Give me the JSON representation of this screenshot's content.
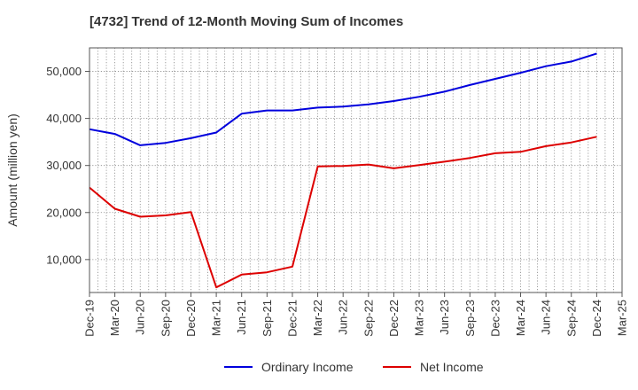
{
  "chart_data": {
    "type": "line",
    "title": "[4732]  Trend of 12-Month Moving Sum of Incomes",
    "xlabel": "",
    "ylabel": "Amount (million yen)",
    "ylim": [
      3000,
      55000
    ],
    "yticks": [
      10000,
      20000,
      30000,
      40000,
      50000
    ],
    "ytick_labels": [
      "10,000",
      "20,000",
      "30,000",
      "40,000",
      "50,000"
    ],
    "grid": true,
    "legend_position": "bottom",
    "tick_labels": [
      "Dec-19",
      "Mar-20",
      "Jun-20",
      "Sep-20",
      "Dec-20",
      "Mar-21",
      "Jun-21",
      "Sep-21",
      "Dec-21",
      "Mar-22",
      "Jun-22",
      "Sep-22",
      "Dec-22",
      "Mar-23",
      "Jun-23",
      "Sep-23",
      "Dec-23",
      "Mar-24",
      "Jun-24",
      "Sep-24",
      "Dec-24",
      "Mar-25"
    ],
    "categories": [
      "Dec-19",
      "Jan-20",
      "Feb-20",
      "Mar-20",
      "Apr-20",
      "May-20",
      "Jun-20",
      "Jul-20",
      "Aug-20",
      "Sep-20",
      "Oct-20",
      "Nov-20",
      "Dec-20",
      "Jan-21",
      "Feb-21",
      "Mar-21",
      "Apr-21",
      "May-21",
      "Jun-21",
      "Jul-21",
      "Aug-21",
      "Sep-21",
      "Oct-21",
      "Nov-21",
      "Dec-21",
      "Jan-22",
      "Feb-22",
      "Mar-22",
      "Apr-22",
      "May-22",
      "Jun-22",
      "Jul-22",
      "Aug-22",
      "Sep-22",
      "Oct-22",
      "Nov-22",
      "Dec-22",
      "Jan-23",
      "Feb-23",
      "Mar-23",
      "Apr-23",
      "May-23",
      "Jun-23",
      "Jul-23",
      "Aug-23",
      "Sep-23",
      "Oct-23",
      "Nov-23",
      "Dec-23",
      "Jan-24",
      "Feb-24",
      "Mar-24",
      "Apr-24",
      "May-24",
      "Jun-24",
      "Jul-24",
      "Aug-24",
      "Sep-24",
      "Oct-24",
      "Nov-24",
      "Dec-24",
      "Jan-25",
      "Feb-25",
      "Mar-25"
    ],
    "series": [
      {
        "name": "Ordinary Income",
        "color": "#0000dd",
        "points": [
          [
            "Dec-19",
            37700
          ],
          [
            "Mar-20",
            36700
          ],
          [
            "Jun-20",
            34300
          ],
          [
            "Sep-20",
            34800
          ],
          [
            "Dec-20",
            35800
          ],
          [
            "Mar-21",
            37000
          ],
          [
            "Jun-21",
            41000
          ],
          [
            "Sep-21",
            41700
          ],
          [
            "Dec-21",
            41700
          ],
          [
            "Mar-22",
            42300
          ],
          [
            "Jun-22",
            42500
          ],
          [
            "Sep-22",
            43000
          ],
          [
            "Dec-22",
            43700
          ],
          [
            "Mar-23",
            44600
          ],
          [
            "Jun-23",
            45700
          ],
          [
            "Sep-23",
            47100
          ],
          [
            "Dec-23",
            48400
          ],
          [
            "Mar-24",
            49700
          ],
          [
            "Jun-24",
            51100
          ],
          [
            "Sep-24",
            52100
          ],
          [
            "Dec-24",
            53800
          ]
        ]
      },
      {
        "name": "Net Income",
        "color": "#dd0000",
        "points": [
          [
            "Dec-19",
            25300
          ],
          [
            "Mar-20",
            20800
          ],
          [
            "Jun-20",
            19100
          ],
          [
            "Sep-20",
            19400
          ],
          [
            "Dec-20",
            20100
          ],
          [
            "Mar-21",
            4100
          ],
          [
            "Jun-21",
            6800
          ],
          [
            "Sep-21",
            7300
          ],
          [
            "Dec-21",
            8500
          ],
          [
            "Mar-22",
            29800
          ],
          [
            "Jun-22",
            29900
          ],
          [
            "Sep-22",
            30200
          ],
          [
            "Dec-22",
            29400
          ],
          [
            "Mar-23",
            30100
          ],
          [
            "Jun-23",
            30800
          ],
          [
            "Sep-23",
            31600
          ],
          [
            "Dec-23",
            32600
          ],
          [
            "Mar-24",
            32900
          ],
          [
            "Jun-24",
            34100
          ],
          [
            "Sep-24",
            34900
          ],
          [
            "Dec-24",
            36100
          ]
        ]
      }
    ]
  }
}
